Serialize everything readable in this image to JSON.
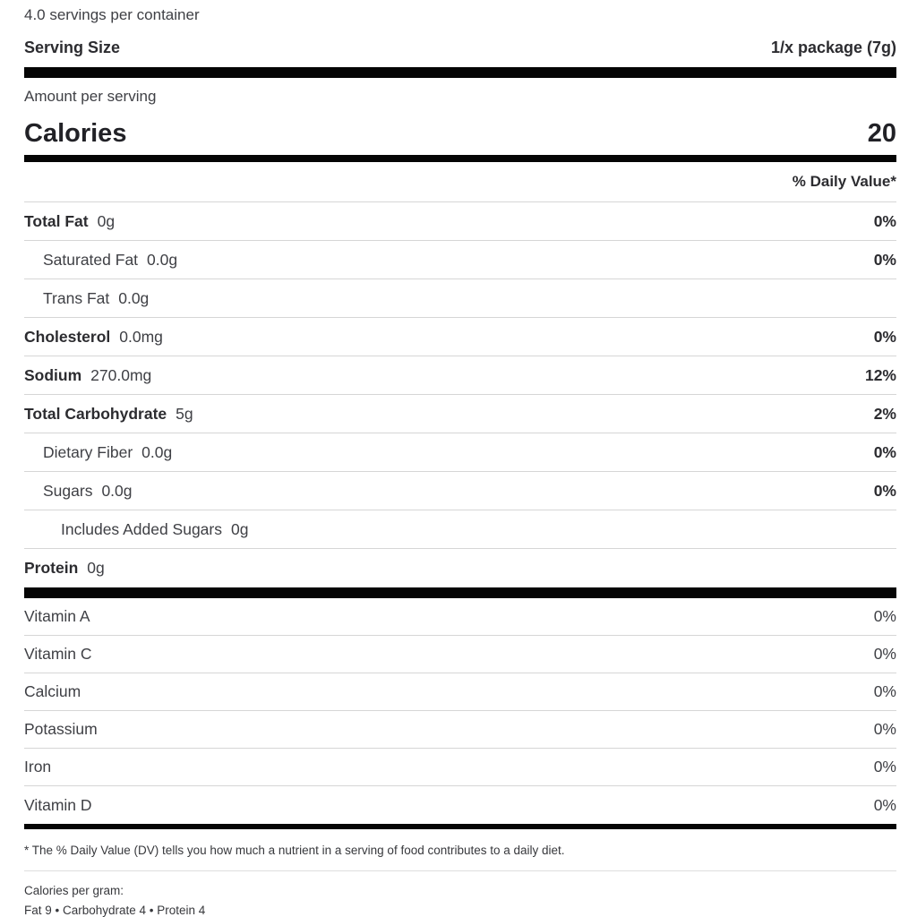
{
  "header": {
    "servings_per_container": "4.0 servings per container",
    "serving_size_label": "Serving Size",
    "serving_size_value": "1/x package (7g)",
    "amount_per_serving": "Amount per serving",
    "calories_label": "Calories",
    "calories_value": "20",
    "daily_value_header": "% Daily Value*"
  },
  "nutrients": [
    {
      "label": "Total Fat",
      "value": "0g",
      "dv": "0%"
    },
    {
      "label": "Saturated Fat",
      "value": "0.0g",
      "dv": "0%"
    },
    {
      "label": "Trans Fat",
      "value": "0.0g",
      "dv": ""
    },
    {
      "label": "Cholesterol",
      "value": "0.0mg",
      "dv": "0%"
    },
    {
      "label": "Sodium",
      "value": "270.0mg",
      "dv": "12%"
    },
    {
      "label": "Total Carbohydrate",
      "value": "5g",
      "dv": "2%"
    },
    {
      "label": "Dietary Fiber",
      "value": "0.0g",
      "dv": "0%"
    },
    {
      "label": "Sugars",
      "value": "0.0g",
      "dv": "0%"
    },
    {
      "label": "Includes Added Sugars",
      "value": "0g",
      "dv": ""
    },
    {
      "label": "Protein",
      "value": "0g",
      "dv": ""
    }
  ],
  "vitamins": [
    {
      "label": "Vitamin A",
      "dv": "0%"
    },
    {
      "label": "Vitamin C",
      "dv": "0%"
    },
    {
      "label": "Calcium",
      "dv": "0%"
    },
    {
      "label": "Potassium",
      "dv": "0%"
    },
    {
      "label": "Iron",
      "dv": "0%"
    },
    {
      "label": "Vitamin D",
      "dv": "0%"
    }
  ],
  "footer": {
    "daily_value_note": "* The % Daily Value (DV) tells you how much a nutrient in a serving of food contributes to a daily diet.",
    "calories_per_gram_label": "Calories per gram:",
    "calories_per_gram_values": "Fat 9 • Carbohydrate 4 • Protein 4"
  },
  "colors": {
    "text_bold": "#2c2c30",
    "text_regular": "#3f4045",
    "bar": "#050505",
    "divider": "#d6d6d6",
    "background": "#ffffff"
  }
}
